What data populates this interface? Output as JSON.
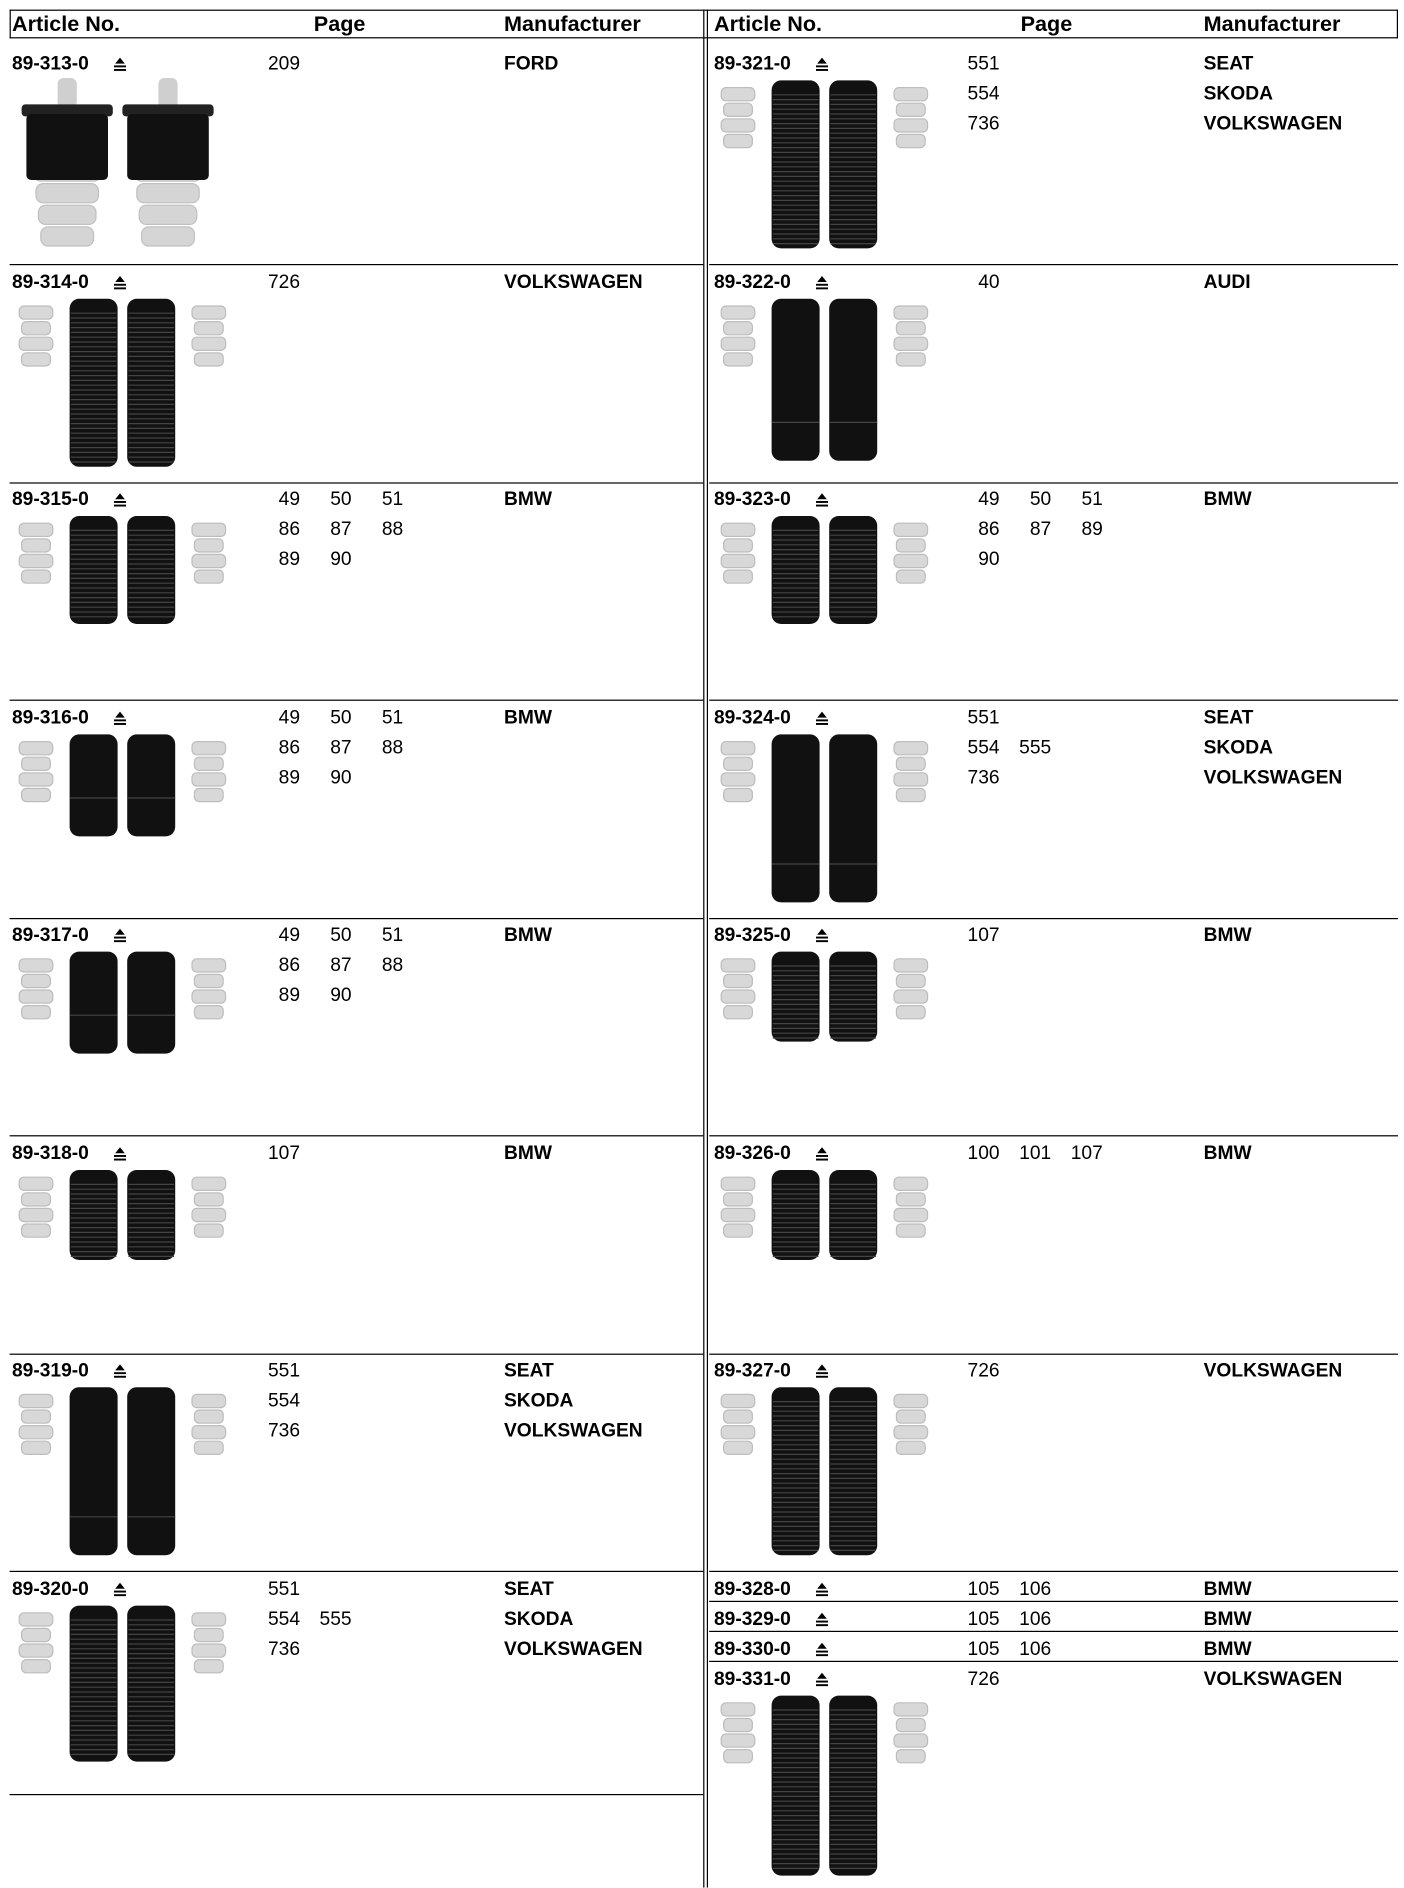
{
  "header": {
    "article": "Article No.",
    "page": "Page",
    "manufacturer": "Manufacturer"
  },
  "columns": [
    {
      "entries": [
        {
          "article": "89-313-0",
          "pages": [
            [
              "209"
            ]
          ],
          "manufacturers": [
            "FORD"
          ]
        },
        {
          "article": "89-314-0",
          "pages": [
            [
              "726"
            ]
          ],
          "manufacturers": [
            "VOLKSWAGEN"
          ]
        },
        {
          "article": "89-315-0",
          "pages": [
            [
              "49",
              "50",
              "51"
            ],
            [
              "86",
              "87",
              "88"
            ],
            [
              "89",
              "90"
            ]
          ],
          "manufacturers": [
            "BMW"
          ]
        },
        {
          "article": "89-316-0",
          "pages": [
            [
              "49",
              "50",
              "51"
            ],
            [
              "86",
              "87",
              "88"
            ],
            [
              "89",
              "90"
            ]
          ],
          "manufacturers": [
            "BMW"
          ]
        },
        {
          "article": "89-317-0",
          "pages": [
            [
              "49",
              "50",
              "51"
            ],
            [
              "86",
              "87",
              "88"
            ],
            [
              "89",
              "90"
            ]
          ],
          "manufacturers": [
            "BMW"
          ]
        },
        {
          "article": "89-318-0",
          "pages": [
            [
              "107"
            ]
          ],
          "manufacturers": [
            "BMW"
          ]
        },
        {
          "article": "89-319-0",
          "pages": [
            [
              "551"
            ],
            [
              "554"
            ],
            [
              "736"
            ]
          ],
          "manufacturers": [
            "SEAT",
            "SKODA",
            "VOLKSWAGEN"
          ]
        },
        {
          "article": "89-320-0",
          "pages": [
            [
              "551"
            ],
            [
              "554",
              "555"
            ],
            [
              "736"
            ]
          ],
          "manufacturers": [
            "SEAT",
            "SKODA",
            "VOLKSWAGEN"
          ]
        }
      ]
    },
    {
      "entries": [
        {
          "article": "89-321-0",
          "pages": [
            [
              "551"
            ],
            [
              "554"
            ],
            [
              "736"
            ]
          ],
          "manufacturers": [
            "SEAT",
            "SKODA",
            "VOLKSWAGEN"
          ]
        },
        {
          "article": "89-322-0",
          "pages": [
            [
              "40"
            ]
          ],
          "manufacturers": [
            "AUDI"
          ]
        },
        {
          "article": "89-323-0",
          "pages": [
            [
              "49",
              "50",
              "51"
            ],
            [
              "86",
              "87",
              "89"
            ],
            [
              "90"
            ]
          ],
          "manufacturers": [
            "BMW"
          ]
        },
        {
          "article": "89-324-0",
          "pages": [
            [
              "551"
            ],
            [
              "554",
              "555"
            ],
            [
              "736"
            ]
          ],
          "manufacturers": [
            "SEAT",
            "SKODA",
            "VOLKSWAGEN"
          ]
        },
        {
          "article": "89-325-0",
          "pages": [
            [
              "107"
            ]
          ],
          "manufacturers": [
            "BMW"
          ]
        },
        {
          "article": "89-326-0",
          "pages": [
            [
              "100",
              "101",
              "107"
            ]
          ],
          "manufacturers": [
            "BMW"
          ]
        },
        {
          "article": "89-327-0",
          "pages": [
            [
              "726"
            ]
          ],
          "manufacturers": [
            "VOLKSWAGEN"
          ]
        },
        {
          "article": "89-328-0",
          "pages": [
            [
              "105",
              "106"
            ]
          ],
          "manufacturers": [
            "BMW"
          ]
        },
        {
          "article": "89-329-0",
          "pages": [
            [
              "105",
              "106"
            ]
          ],
          "manufacturers": [
            "BMW"
          ]
        },
        {
          "article": "89-330-0",
          "pages": [
            [
              "105",
              "106"
            ]
          ],
          "manufacturers": [
            "BMW"
          ]
        },
        {
          "article": "89-331-0",
          "pages": [
            [
              "726"
            ]
          ],
          "manufacturers": [
            "VOLKSWAGEN"
          ]
        }
      ]
    }
  ]
}
